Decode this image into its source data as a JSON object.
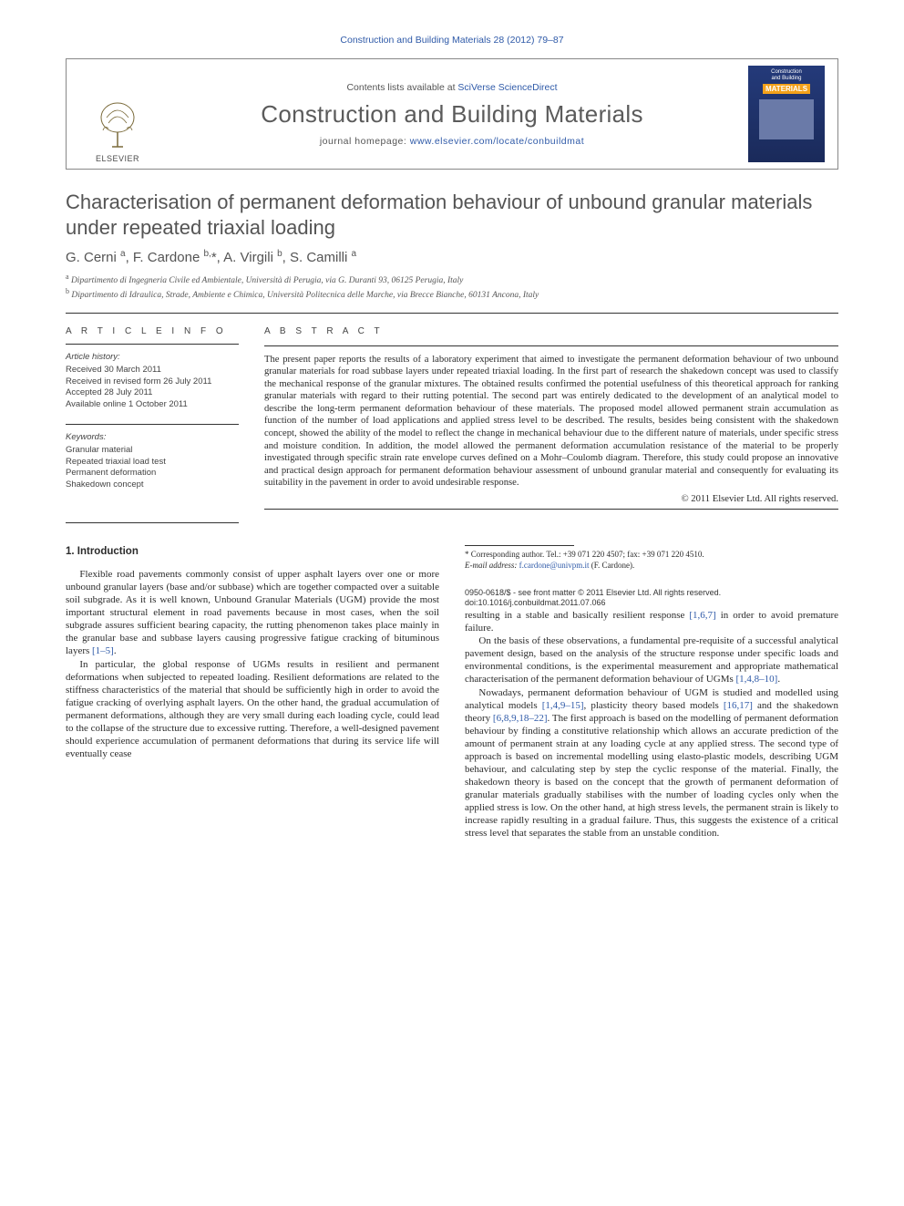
{
  "running_head": "Construction and Building Materials 28 (2012) 79–87",
  "header": {
    "contents_prefix": "Contents lists available at ",
    "contents_link": "SciVerse ScienceDirect",
    "journal": "Construction and Building Materials",
    "homepage_prefix": "journal homepage: ",
    "homepage_url": "www.elsevier.com/locate/conbuildmat",
    "publisher_word": "ELSEVIER",
    "cover": {
      "line1": "Construction",
      "line2": "and Building",
      "materials": "MATERIALS"
    }
  },
  "title": "Characterisation of permanent deformation behaviour of unbound granular materials under repeated triaxial loading",
  "authors_html": "G. Cerni <sup>a</sup>, F. Cardone <sup>b,</sup><span class='star'>*</span>, A. Virgili <sup>b</sup>, S. Camilli <sup>a</sup>",
  "affiliations": {
    "a": "Dipartimento di Ingegneria Civile ed Ambientale, Università di Perugia, via G. Duranti 93, 06125 Perugia, Italy",
    "b": "Dipartimento di Idraulica, Strade, Ambiente e Chimica, Università Politecnica delle Marche, via Brecce Bianche, 60131 Ancona, Italy"
  },
  "article_info": {
    "heading": "A R T I C L E   I N F O",
    "history_label": "Article history:",
    "history": [
      "Received 30 March 2011",
      "Received in revised form 26 July 2011",
      "Accepted 28 July 2011",
      "Available online 1 October 2011"
    ],
    "keywords_label": "Keywords:",
    "keywords": [
      "Granular material",
      "Repeated triaxial load test",
      "Permanent deformation",
      "Shakedown concept"
    ]
  },
  "abstract": {
    "heading": "A B S T R A C T",
    "text": "The present paper reports the results of a laboratory experiment that aimed to investigate the permanent deformation behaviour of two unbound granular materials for road subbase layers under repeated triaxial loading. In the first part of research the shakedown concept was used to classify the mechanical response of the granular mixtures. The obtained results confirmed the potential usefulness of this theoretical approach for ranking granular materials with regard to their rutting potential. The second part was entirely dedicated to the development of an analytical model to describe the long-term permanent deformation behaviour of these materials. The proposed model allowed permanent strain accumulation as function of the number of load applications and applied stress level to be described. The results, besides being consistent with the shakedown concept, showed the ability of the model to reflect the change in mechanical behaviour due to the different nature of materials, under specific stress and moisture condition. In addition, the model allowed the permanent deformation accumulation resistance of the material to be properly investigated through specific strain rate envelope curves defined on a Mohr–Coulomb diagram. Therefore, this study could propose an innovative and practical design approach for permanent deformation behaviour assessment of unbound granular material and consequently for evaluating its suitability in the pavement in order to avoid undesirable response.",
    "copyright": "© 2011 Elsevier Ltd. All rights reserved."
  },
  "body": {
    "h_intro": "1. Introduction",
    "p1a": "Flexible road pavements commonly consist of upper asphalt layers over one or more unbound granular layers (base and/or subbase) which are together compacted over a suitable soil subgrade. As it is well known, Unbound Granular Materials (UGM) provide the most important structural element in road pavements because in most cases, when the soil subgrade assures sufficient bearing capacity, the rutting phenomenon takes place mainly in the granular base and subbase layers causing progressive fatigue cracking of bituminous layers ",
    "p1r": "[1–5]",
    "p1b": ".",
    "p2": "In particular, the global response of UGMs results in resilient and permanent deformations when subjected to repeated loading. Resilient deformations are related to the stiffness characteristics of the material that should be sufficiently high in order to avoid the fatigue cracking of overlying asphalt layers. On the other hand, the gradual accumulation of permanent deformations, although they are very small during each loading cycle, could lead to the collapse of the structure due to excessive rutting. Therefore, a well-designed pavement should experience accumulation of permanent deformations that during its service life will eventually cease",
    "p3a": "resulting in a stable and basically resilient response ",
    "p3r": "[1,6,7]",
    "p3b": " in order to avoid premature failure.",
    "p4a": "On the basis of these observations, a fundamental pre-requisite of a successful analytical pavement design, based on the analysis of the structure response under specific loads and environmental conditions, is the experimental measurement and appropriate mathematical characterisation of the permanent deformation behaviour of UGMs ",
    "p4r": "[1,4,8–10]",
    "p4b": ".",
    "p5a": "Nowadays, permanent deformation behaviour of UGM is studied and modelled using analytical models ",
    "p5r1": "[1,4,9–15]",
    "p5b": ", plasticity theory based models ",
    "p5r2": "[16,17]",
    "p5c": " and the shakedown theory ",
    "p5r3": "[6,8,9,18–22]",
    "p5d": ". The first approach is based on the modelling of permanent deformation behaviour by finding a constitutive relationship which allows an accurate prediction of the amount of permanent strain at any loading cycle at any applied stress. The second type of approach is based on incremental modelling using elasto-plastic models, describing UGM behaviour, and calculating step by step the cyclic response of the material. Finally, the shakedown theory is based on the concept that the growth of permanent deformation of granular materials gradually stabilises with the number of loading cycles only when the applied stress is low. On the other hand, at high stress levels, the permanent strain is likely to increase rapidly resulting in a gradual failure. Thus, this suggests the existence of a critical stress level that separates the stable from an unstable condition."
  },
  "footnote": {
    "corr": "* Corresponding author. Tel.: +39 071 220 4507; fax: +39 071 220 4510.",
    "email_label": "E-mail address: ",
    "email": "f.cardone@univpm.it",
    "email_tail": " (F. Cardone)."
  },
  "front_matter": {
    "line1": "0950-0618/$ - see front matter © 2011 Elsevier Ltd. All rights reserved.",
    "line2": "doi:10.1016/j.conbuildmat.2011.07.066"
  }
}
